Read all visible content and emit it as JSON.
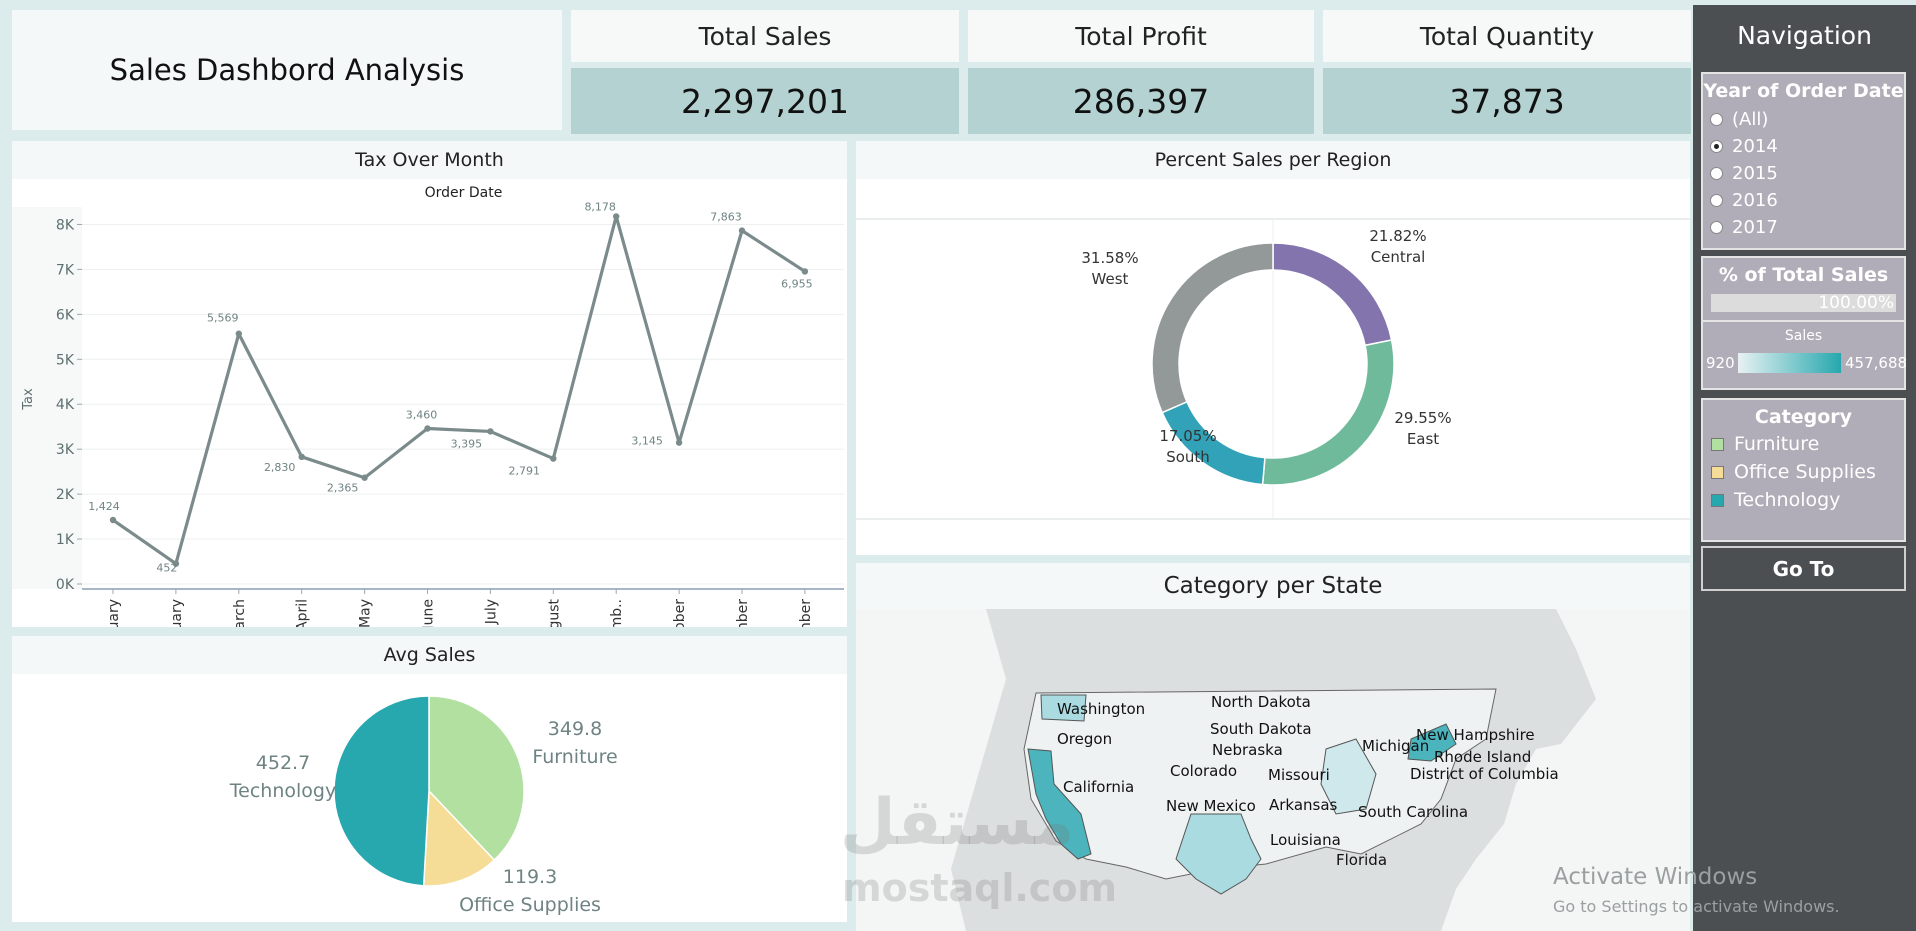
{
  "dashboard_title": "Sales Dashbord Analysis",
  "kpis": [
    {
      "title": "Total Sales",
      "value": "2,297,201"
    },
    {
      "title": "Total Profit",
      "value": "286,397"
    },
    {
      "title": "Total Quantity",
      "value": "37,873"
    }
  ],
  "tax_chart": {
    "title": "Tax Over Month",
    "header": "Order Date"
  },
  "region_chart": {
    "title": "Percent Sales per Region"
  },
  "avg_chart": {
    "title": "Avg Sales"
  },
  "map": {
    "title": "Category per State",
    "labels": [
      "Washington",
      "North Dakota",
      "South Dakota",
      "Oregon",
      "Nebraska",
      "Michigan",
      "New Hampshire",
      "Rhode Island",
      "Colorado",
      "Missouri",
      "District of Columbia",
      "California",
      "New Mexico",
      "Arkansas",
      "South Carolina",
      "Louisiana",
      "Florida"
    ]
  },
  "navigation": {
    "title": "Navigation",
    "year_filter": {
      "title": "Year of Order Date",
      "options": [
        "(All)",
        "2014",
        "2015",
        "2016",
        "2017"
      ],
      "selected": "2014"
    },
    "pct_total": {
      "title": "% of Total Sales",
      "value": "100.00%",
      "fill": 1.0
    },
    "sales_legend": {
      "title": "Sales",
      "min": "920",
      "max": "457,688"
    },
    "category_legend": {
      "title": "Category",
      "items": [
        {
          "label": "Furniture",
          "color": "#b1e0a0"
        },
        {
          "label": "Office Supplies",
          "color": "#f5dc97"
        },
        {
          "label": "Technology",
          "color": "#26a8ae"
        }
      ]
    },
    "goto_label": "Go To"
  },
  "overlay_text": {
    "activate_title": "Activate Windows",
    "activate_sub": "Go to Settings to activate Windows.",
    "watermark_arabic": "مستقل",
    "watermark_latin": "mostaql.com"
  },
  "chart_data": [
    {
      "type": "line",
      "title": "Tax Over Month",
      "xlabel": "Order Date",
      "ylabel": "Tax",
      "categories": [
        "January",
        "February",
        "March",
        "April",
        "May",
        "June",
        "July",
        "August",
        "Septemb..",
        "October",
        "November",
        "December"
      ],
      "values": [
        1424,
        452,
        5569,
        2830,
        2365,
        3460,
        3395,
        2791,
        8178,
        3145,
        7863,
        6955
      ],
      "value_labels": [
        "1,424",
        "452",
        "5,569",
        "2,830",
        "2,365",
        "3,460",
        "3,395",
        "2,791",
        "8,178",
        "3,145",
        "7,863",
        "6,955"
      ],
      "yticks": [
        "0K",
        "1K",
        "2K",
        "3K",
        "4K",
        "5K",
        "6K",
        "7K",
        "8K"
      ],
      "ylim": [
        0,
        8500
      ],
      "color": "#7b8b8b"
    },
    {
      "type": "pie",
      "title": "Percent Sales per Region",
      "donut": true,
      "slices": [
        {
          "label": "Central",
          "value": 21.82,
          "text": "21.82%",
          "color": "#8474ad"
        },
        {
          "label": "East",
          "value": 29.55,
          "text": "29.55%",
          "color": "#6fba9b"
        },
        {
          "label": "South",
          "value": 17.05,
          "text": "17.05%",
          "color": "#31a2b7"
        },
        {
          "label": "West",
          "value": 31.58,
          "text": "31.58%",
          "color": "#939899"
        }
      ]
    },
    {
      "type": "pie",
      "title": "Avg Sales",
      "slices": [
        {
          "label": "Furniture",
          "value": 349.8,
          "text": "349.8",
          "color": "#b1e0a0"
        },
        {
          "label": "Office Supplies",
          "value": 119.3,
          "text": "119.3",
          "color": "#f5dc97"
        },
        {
          "label": "Technology",
          "value": 452.7,
          "text": "452.7",
          "color": "#26a8ae"
        }
      ]
    }
  ]
}
